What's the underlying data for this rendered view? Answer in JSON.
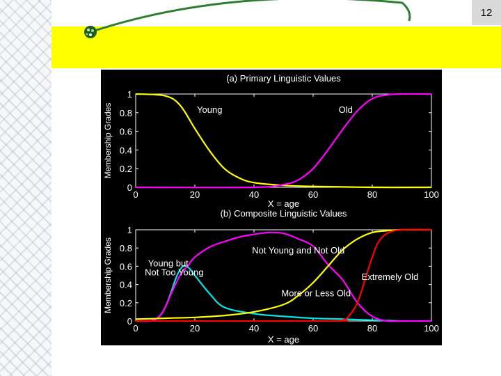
{
  "slide": {
    "page_number": "12"
  },
  "chart_data": [
    {
      "type": "line",
      "title": "(a) Primary Linguistic Values",
      "xlabel": "X = age",
      "ylabel": "Membership Grades",
      "xlim": [
        0,
        100
      ],
      "ylim": [
        0,
        1
      ],
      "x_ticks": [
        "0",
        "20",
        "40",
        "60",
        "80",
        "100"
      ],
      "y_ticks": [
        "0",
        "0.2",
        "0.4",
        "0.6",
        "0.8",
        "1"
      ],
      "series": [
        {
          "name": "Young",
          "color": "#ffff00",
          "x": [
            0,
            10,
            15,
            20,
            25,
            30,
            35,
            40,
            50,
            60,
            80,
            100
          ],
          "y": [
            1,
            0.98,
            0.88,
            0.63,
            0.39,
            0.2,
            0.1,
            0.05,
            0.02,
            0.01,
            0.0,
            0.0
          ]
        },
        {
          "name": "Old",
          "color": "#ff00ff",
          "x": [
            0,
            40,
            50,
            55,
            60,
            65,
            70,
            75,
            80,
            85,
            90,
            100
          ],
          "y": [
            0,
            0.0,
            0.03,
            0.08,
            0.2,
            0.4,
            0.62,
            0.82,
            0.95,
            0.99,
            1.0,
            1.0
          ]
        }
      ],
      "annotations": [
        {
          "text": "Young",
          "x": 25,
          "y": 0.8
        },
        {
          "text": "Old",
          "x": 71,
          "y": 0.8
        }
      ]
    },
    {
      "type": "line",
      "title": "(b) Composite Linguistic Values",
      "xlabel": "X = age",
      "ylabel": "Membership Grades",
      "xlim": [
        0,
        100
      ],
      "ylim": [
        0,
        1
      ],
      "x_ticks": [
        "0",
        "20",
        "40",
        "60",
        "80",
        "100"
      ],
      "y_ticks": [
        "0",
        "0.2",
        "0.4",
        "0.6",
        "0.8",
        "1"
      ],
      "series": [
        {
          "name": "Young but Not Too Young",
          "color": "#00e5e5",
          "x": [
            0,
            5,
            8,
            10,
            12,
            14,
            16,
            18,
            20,
            25,
            30,
            40,
            50,
            60,
            70,
            80,
            90,
            100
          ],
          "y": [
            0,
            0.0,
            0.05,
            0.15,
            0.32,
            0.5,
            0.6,
            0.58,
            0.5,
            0.3,
            0.15,
            0.08,
            0.05,
            0.03,
            0.02,
            0.01,
            0.0,
            0.0
          ]
        },
        {
          "name": "Not Young and Not Old",
          "color": "#ff00ff",
          "x": [
            0,
            5,
            8,
            10,
            12,
            15,
            18,
            20,
            25,
            30,
            35,
            40,
            45,
            50,
            55,
            60,
            65,
            70,
            75,
            80,
            85,
            90,
            100
          ],
          "y": [
            0,
            0.0,
            0.05,
            0.15,
            0.3,
            0.5,
            0.62,
            0.7,
            0.81,
            0.87,
            0.92,
            0.95,
            0.97,
            0.96,
            0.9,
            0.82,
            0.62,
            0.45,
            0.2,
            0.05,
            0.0,
            0.0,
            0.0
          ]
        },
        {
          "name": "More or Less Old",
          "color": "#ffff00",
          "x": [
            0,
            10,
            20,
            30,
            40,
            50,
            55,
            60,
            65,
            70,
            75,
            80,
            85,
            90,
            100
          ],
          "y": [
            0.02,
            0.03,
            0.04,
            0.06,
            0.1,
            0.18,
            0.28,
            0.42,
            0.6,
            0.78,
            0.9,
            0.97,
            0.99,
            1.0,
            1.0
          ]
        },
        {
          "name": "Extremely Old",
          "color": "#ff0000",
          "x": [
            0,
            65,
            70,
            72,
            75,
            78,
            80,
            82,
            85,
            90,
            100
          ],
          "y": [
            0,
            0.0,
            0.01,
            0.05,
            0.2,
            0.5,
            0.7,
            0.86,
            0.96,
            1.0,
            1.0
          ]
        }
      ],
      "annotations": [
        {
          "text": "Young but",
          "x": 11,
          "y": 0.6
        },
        {
          "text": "Not Too Young",
          "x": 13,
          "y": 0.5
        },
        {
          "text": "Not Young and Not Old",
          "x": 55,
          "y": 0.74
        },
        {
          "text": "More or Less Old",
          "x": 61,
          "y": 0.27
        },
        {
          "text": "Extremely Old",
          "x": 86,
          "y": 0.45
        }
      ]
    }
  ]
}
